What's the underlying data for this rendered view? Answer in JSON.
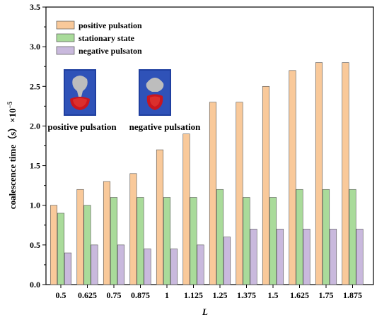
{
  "chart_data": {
    "type": "bar",
    "title": "",
    "xlabel": "L",
    "ylabel": "coalescence time（s）×10",
    "ylabel_exponent": "−5",
    "ylim": [
      0,
      3.5
    ],
    "yticks": [
      "0.0",
      "0.5",
      "1.0",
      "1.5",
      "2.0",
      "2.5",
      "3.0",
      "3.5"
    ],
    "categories": [
      "0.5",
      "0.625",
      "0.75",
      "0.875",
      "1",
      "1.125",
      "1.25",
      "1.375",
      "1.5",
      "1.625",
      "1.75",
      "1.875"
    ],
    "series": [
      {
        "name": "positive pulsation",
        "color": "#F9C99A",
        "values": [
          1.0,
          1.2,
          1.3,
          1.4,
          1.7,
          1.9,
          2.3,
          2.3,
          2.5,
          2.7,
          2.8,
          2.8
        ]
      },
      {
        "name": "stationary state",
        "color": "#A9DB9A",
        "values": [
          0.9,
          1.0,
          1.1,
          1.1,
          1.1,
          1.1,
          1.2,
          1.1,
          1.1,
          1.2,
          1.2,
          1.2
        ]
      },
      {
        "name": "negative pulsaton",
        "color": "#C9B9DD",
        "values": [
          0.4,
          0.5,
          0.5,
          0.45,
          0.45,
          0.5,
          0.6,
          0.7,
          0.7,
          0.7,
          0.7,
          0.7
        ]
      }
    ],
    "legend_position": "top-left",
    "grid": false
  },
  "insets": [
    {
      "label": "positive pulsation",
      "icon": "positive-pulsation-droplet-icon"
    },
    {
      "label": "negative pulsation",
      "icon": "negative-pulsation-droplet-icon"
    }
  ]
}
